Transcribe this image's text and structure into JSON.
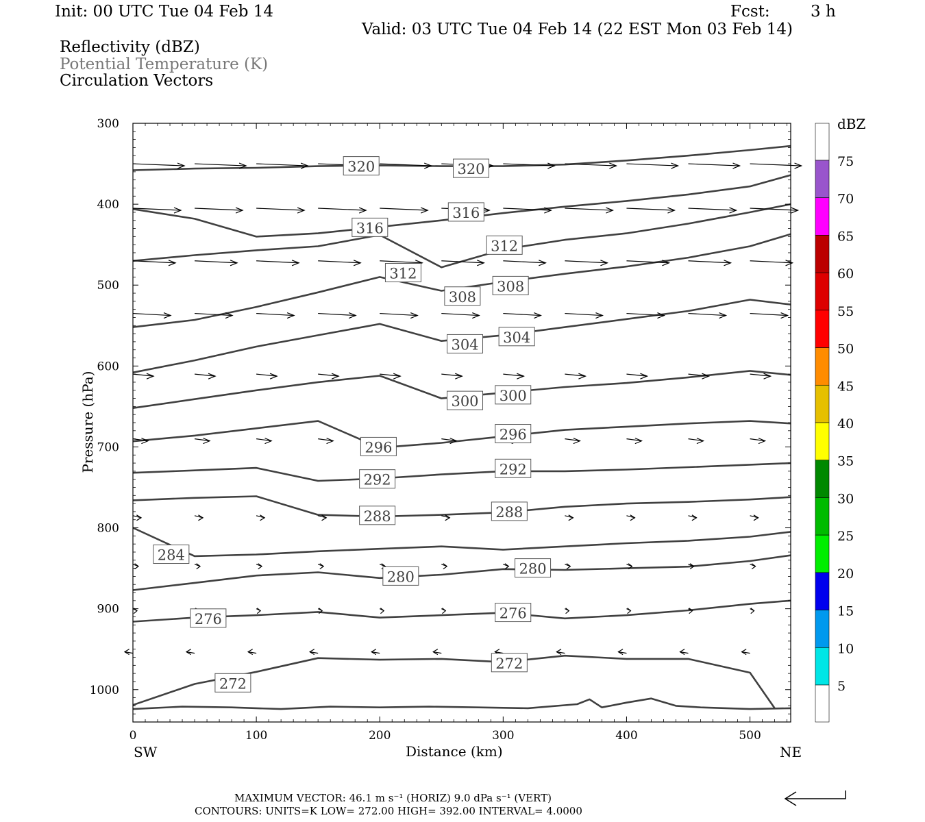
{
  "header": {
    "init": "Init: 00 UTC Tue 04 Feb 14",
    "fcst_label": "Fcst:",
    "fcst_value": "3 h",
    "valid": "Valid: 03 UTC Tue 04 Feb 14 (22 EST Mon 03 Feb 14)",
    "fields": [
      "Reflectivity (dBZ)",
      "Potential Temperature (K)",
      "Circulation Vectors"
    ]
  },
  "colors": {
    "contour": "#404040",
    "field_gray": "#777777",
    "frame": "#000000"
  },
  "chart_data": {
    "type": "line",
    "xlabel": "Distance (km)",
    "ylabel": "Pressure (hPa)",
    "xlim": [
      0,
      533
    ],
    "ylim": [
      1040,
      300
    ],
    "x_ticks": [
      0,
      100,
      200,
      300,
      400,
      500
    ],
    "y_ticks": [
      300,
      400,
      500,
      600,
      700,
      800,
      900,
      1000
    ],
    "x_end_labels": {
      "left": "SW",
      "right": "NE"
    },
    "contour_labels": [
      {
        "x": 185,
        "y": 353,
        "text": "320"
      },
      {
        "x": 274,
        "y": 356,
        "text": "320"
      },
      {
        "x": 192,
        "y": 429,
        "text": "316"
      },
      {
        "x": 270,
        "y": 410,
        "text": "316"
      },
      {
        "x": 301,
        "y": 451,
        "text": "312"
      },
      {
        "x": 219,
        "y": 485,
        "text": "312"
      },
      {
        "x": 267,
        "y": 514,
        "text": "308"
      },
      {
        "x": 306,
        "y": 501,
        "text": "308"
      },
      {
        "x": 269,
        "y": 573,
        "text": "304"
      },
      {
        "x": 311,
        "y": 564,
        "text": "304"
      },
      {
        "x": 269,
        "y": 643,
        "text": "300"
      },
      {
        "x": 308,
        "y": 636,
        "text": "300"
      },
      {
        "x": 199,
        "y": 700,
        "text": "296"
      },
      {
        "x": 308,
        "y": 684,
        "text": "296"
      },
      {
        "x": 198,
        "y": 740,
        "text": "292"
      },
      {
        "x": 308,
        "y": 727,
        "text": "292"
      },
      {
        "x": 198,
        "y": 785,
        "text": "288"
      },
      {
        "x": 305,
        "y": 780,
        "text": "288"
      },
      {
        "x": 31,
        "y": 833,
        "text": "284"
      },
      {
        "x": 217,
        "y": 860,
        "text": "280"
      },
      {
        "x": 324,
        "y": 850,
        "text": "280"
      },
      {
        "x": 61,
        "y": 912,
        "text": "276"
      },
      {
        "x": 308,
        "y": 905,
        "text": "276"
      },
      {
        "x": 81,
        "y": 992,
        "text": "272"
      },
      {
        "x": 305,
        "y": 967,
        "text": "272"
      }
    ],
    "series": [
      {
        "name": "320",
        "x": [
          0,
          50,
          100,
          150,
          200,
          250,
          300,
          350,
          400,
          450,
          500,
          533
        ],
        "y": [
          358,
          356,
          355,
          353,
          352,
          353,
          353,
          351,
          346,
          340,
          333,
          328
        ]
      },
      {
        "name": "316",
        "x": [
          0,
          50,
          100,
          150,
          200,
          250,
          300,
          350,
          400,
          450,
          500,
          533
        ],
        "y": [
          406,
          418,
          440,
          436,
          428,
          420,
          411,
          403,
          396,
          388,
          378,
          364
        ]
      },
      {
        "name": "312",
        "x": [
          0,
          50,
          100,
          150,
          200,
          250,
          300,
          350,
          400,
          450,
          500,
          533
        ],
        "y": [
          470,
          463,
          457,
          452,
          438,
          478,
          456,
          444,
          436,
          424,
          410,
          400
        ]
      },
      {
        "name": "308",
        "x": [
          0,
          50,
          100,
          150,
          200,
          250,
          300,
          350,
          400,
          450,
          500,
          533
        ],
        "y": [
          552,
          543,
          527,
          509,
          490,
          507,
          496,
          486,
          477,
          466,
          452,
          437
        ]
      },
      {
        "name": "304",
        "x": [
          0,
          50,
          100,
          150,
          200,
          250,
          300,
          350,
          400,
          450,
          500,
          533
        ],
        "y": [
          608,
          593,
          576,
          562,
          548,
          569,
          562,
          552,
          542,
          532,
          518,
          524
        ]
      },
      {
        "name": "300",
        "x": [
          0,
          50,
          100,
          150,
          200,
          250,
          300,
          350,
          400,
          450,
          500,
          533
        ],
        "y": [
          652,
          641,
          630,
          620,
          612,
          640,
          633,
          626,
          621,
          614,
          606,
          611
        ]
      },
      {
        "name": "296",
        "x": [
          0,
          50,
          100,
          150,
          200,
          250,
          300,
          350,
          400,
          450,
          500,
          533
        ],
        "y": [
          693,
          686,
          677,
          668,
          701,
          695,
          687,
          679,
          675,
          671,
          668,
          671
        ]
      },
      {
        "name": "292",
        "x": [
          0,
          50,
          100,
          150,
          200,
          250,
          300,
          350,
          400,
          450,
          500,
          533
        ],
        "y": [
          732,
          729,
          726,
          742,
          739,
          734,
          730,
          730,
          728,
          725,
          722,
          720
        ]
      },
      {
        "name": "288",
        "x": [
          0,
          50,
          100,
          150,
          200,
          250,
          300,
          350,
          400,
          450,
          500,
          533
        ],
        "y": [
          766,
          763,
          761,
          784,
          786,
          784,
          781,
          774,
          770,
          768,
          765,
          762
        ]
      },
      {
        "name": "284",
        "x": [
          0,
          50,
          100,
          150,
          200,
          250,
          300,
          350,
          400,
          450,
          500,
          533
        ],
        "y": [
          800,
          835,
          833,
          829,
          826,
          823,
          827,
          823,
          819,
          816,
          811,
          805
        ]
      },
      {
        "name": "280",
        "x": [
          0,
          50,
          100,
          150,
          200,
          250,
          300,
          350,
          400,
          450,
          500,
          533
        ],
        "y": [
          877,
          868,
          859,
          855,
          862,
          858,
          851,
          852,
          850,
          848,
          841,
          834
        ]
      },
      {
        "name": "276",
        "x": [
          0,
          50,
          100,
          150,
          200,
          250,
          300,
          350,
          400,
          450,
          500,
          533
        ],
        "y": [
          916,
          911,
          908,
          904,
          911,
          908,
          905,
          912,
          908,
          902,
          894,
          890
        ]
      },
      {
        "name": "272",
        "x": [
          0,
          50,
          100,
          150,
          200,
          250,
          300,
          350,
          400,
          450,
          500,
          520
        ],
        "y": [
          1019,
          993,
          978,
          961,
          963,
          962,
          966,
          958,
          962,
          962,
          979,
          1023
        ]
      },
      {
        "name": "",
        "x": [
          0,
          40,
          80,
          120,
          160,
          200,
          240,
          280,
          320,
          360,
          370,
          380,
          400,
          420,
          440,
          460,
          500,
          533
        ],
        "y": [
          1024,
          1021,
          1022,
          1024,
          1021,
          1022,
          1021,
          1022,
          1023,
          1018,
          1012,
          1022,
          1016,
          1011,
          1020,
          1022,
          1024,
          1023
        ]
      }
    ]
  },
  "colorbar": {
    "unit": "dBZ",
    "levels": [
      "5",
      "10",
      "15",
      "20",
      "25",
      "30",
      "35",
      "40",
      "45",
      "50",
      "55",
      "60",
      "65",
      "70",
      "75"
    ],
    "colors": [
      "#ffffff",
      "#00e6e6",
      "#0099ee",
      "#0000ee",
      "#00ee00",
      "#00cc00",
      "#00aa00",
      "#008800",
      "#ffff00",
      "#e6c000",
      "#ff8c00",
      "#ff0000",
      "#dd0000",
      "#bb0000",
      "#ff00ff",
      "#9955cc",
      "#ffffff"
    ]
  },
  "footer": {
    "max_vector": "MAXIMUM VECTOR:  46.1 m s⁻¹ (HORIZ)        9.0 dPa s⁻¹ (VERT)",
    "contours": "CONTOURS:  UNITS=K  LOW=  272.00       HIGH=  392.00       INTERVAL=    4.0000"
  }
}
